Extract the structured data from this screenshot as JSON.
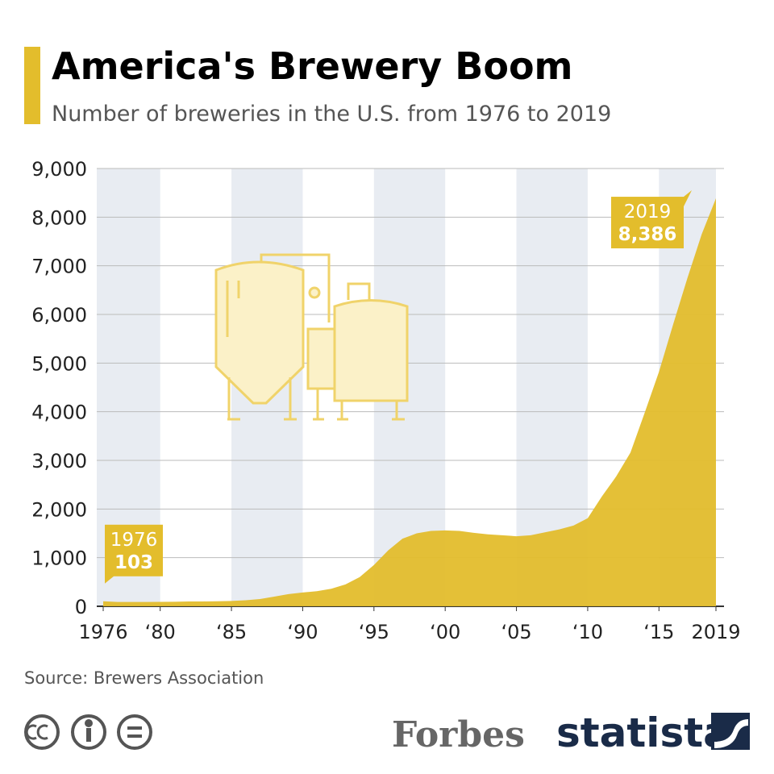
{
  "chart_data": {
    "type": "area",
    "title": "America's Brewery Boom",
    "subtitle": "Number of breweries in the U.S. from 1976 to 2019",
    "x": [
      1976,
      1977,
      1978,
      1979,
      1980,
      1981,
      1982,
      1983,
      1984,
      1985,
      1986,
      1987,
      1988,
      1989,
      1990,
      1991,
      1992,
      1993,
      1994,
      1995,
      1996,
      1997,
      1998,
      1999,
      2000,
      2001,
      2002,
      2003,
      2004,
      2005,
      2006,
      2007,
      2008,
      2009,
      2010,
      2011,
      2012,
      2013,
      2014,
      2015,
      2016,
      2017,
      2018,
      2019
    ],
    "series": [
      {
        "name": "Breweries",
        "color": "#e3bd2c",
        "values": [
          103,
          90,
          89,
          89,
          92,
          94,
          100,
          100,
          103,
          110,
          124,
          150,
          199,
          250,
          284,
          310,
          360,
          450,
          600,
          850,
          1150,
          1390,
          1500,
          1550,
          1560,
          1550,
          1510,
          1480,
          1460,
          1440,
          1460,
          1520,
          1580,
          1660,
          1810,
          2260,
          2670,
          3160,
          3980,
          4820,
          5800,
          6750,
          7650,
          8386
        ]
      }
    ],
    "xlim": [
      1976,
      2019
    ],
    "xticks": [
      1976,
      {
        "value": 1980,
        "label": "‘80"
      },
      {
        "value": 1985,
        "label": "‘85"
      },
      {
        "value": 1990,
        "label": "‘90"
      },
      {
        "value": 1995,
        "label": "‘95"
      },
      {
        "value": 2000,
        "label": "‘00"
      },
      {
        "value": 2005,
        "label": "‘05"
      },
      {
        "value": 2010,
        "label": "‘10"
      },
      {
        "value": 2015,
        "label": "‘15"
      },
      2019
    ],
    "ylim": [
      0,
      9000
    ],
    "yticks": [
      0,
      {
        "value": 1000,
        "label": "1,000"
      },
      {
        "value": 2000,
        "label": "2,000"
      },
      {
        "value": 3000,
        "label": "3,000"
      },
      {
        "value": 4000,
        "label": "4,000"
      },
      {
        "value": 5000,
        "label": "5,000"
      },
      {
        "value": 6000,
        "label": "6,000"
      },
      {
        "value": 7000,
        "label": "7,000"
      },
      {
        "value": 8000,
        "label": "8,000"
      },
      {
        "value": 9000,
        "label": "9,000"
      }
    ],
    "grid": true,
    "annotations": [
      {
        "x": 1976,
        "value": 103
      },
      {
        "x": 2019,
        "value": 8386,
        "value_label": "8,386"
      }
    ],
    "source": "Source: Brewers Association",
    "publisher": "Forbes",
    "brand": "statista"
  }
}
